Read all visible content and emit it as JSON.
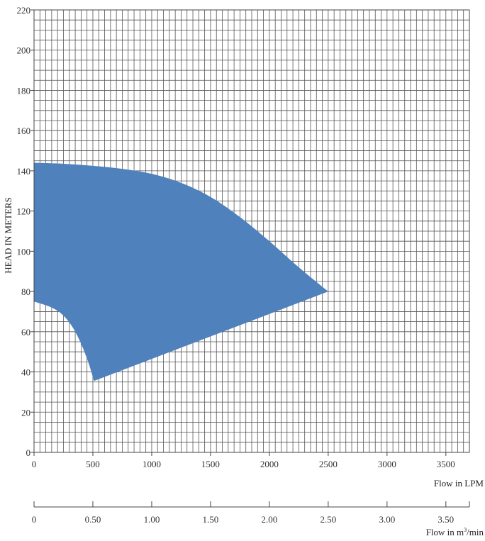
{
  "chart_data": {
    "type": "area",
    "title": "",
    "ylabel": "HEAD IN METERS",
    "xlabel": "Flow in LPM",
    "secondary_xlabel": "Flow in m",
    "secondary_xlabel_sup": "3",
    "secondary_xlabel_suffix": "/min",
    "xlim": [
      0,
      3700
    ],
    "ylim": [
      0,
      220
    ],
    "grid": true,
    "x_ticks": [
      0,
      500,
      1000,
      1500,
      2000,
      2500,
      3000,
      3500
    ],
    "x_tick_labels": [
      "0",
      "500",
      "1000",
      "1500",
      "2000",
      "2500",
      "3000",
      "3500"
    ],
    "y_ticks": [
      0,
      20,
      40,
      60,
      80,
      100,
      120,
      140,
      160,
      180,
      200,
      220
    ],
    "y_tick_labels": [
      "0",
      "20",
      "40",
      "60",
      "80",
      "100",
      "120",
      "140",
      "160",
      "180",
      "200",
      "220"
    ],
    "secondary_x_ticks": [
      0,
      500,
      1000,
      1500,
      2000,
      2500,
      3000,
      3500
    ],
    "secondary_x_tick_labels": [
      "0",
      "0.50",
      "1.00",
      "1.50",
      "2.00",
      "2.50",
      "3.00",
      "3.50"
    ],
    "fill_color": "#4f81bd",
    "grid_color": "#555555",
    "series": [
      {
        "values_upper": [
          [
            0,
            144
          ],
          [
            250,
            143.5
          ],
          [
            500,
            142.5
          ],
          [
            750,
            141
          ],
          [
            1000,
            138.5
          ],
          [
            1250,
            134
          ],
          [
            1500,
            127
          ],
          [
            1750,
            117
          ],
          [
            2000,
            105
          ],
          [
            2250,
            92
          ],
          [
            2500,
            80
          ]
        ],
        "values_lower": [
          [
            0,
            75
          ],
          [
            150,
            72
          ],
          [
            250,
            68
          ],
          [
            330,
            62
          ],
          [
            400,
            54
          ],
          [
            460,
            45
          ],
          [
            510,
            35.5
          ],
          [
            1000,
            46
          ],
          [
            1500,
            57
          ],
          [
            2000,
            68
          ],
          [
            2500,
            80
          ]
        ]
      }
    ]
  }
}
